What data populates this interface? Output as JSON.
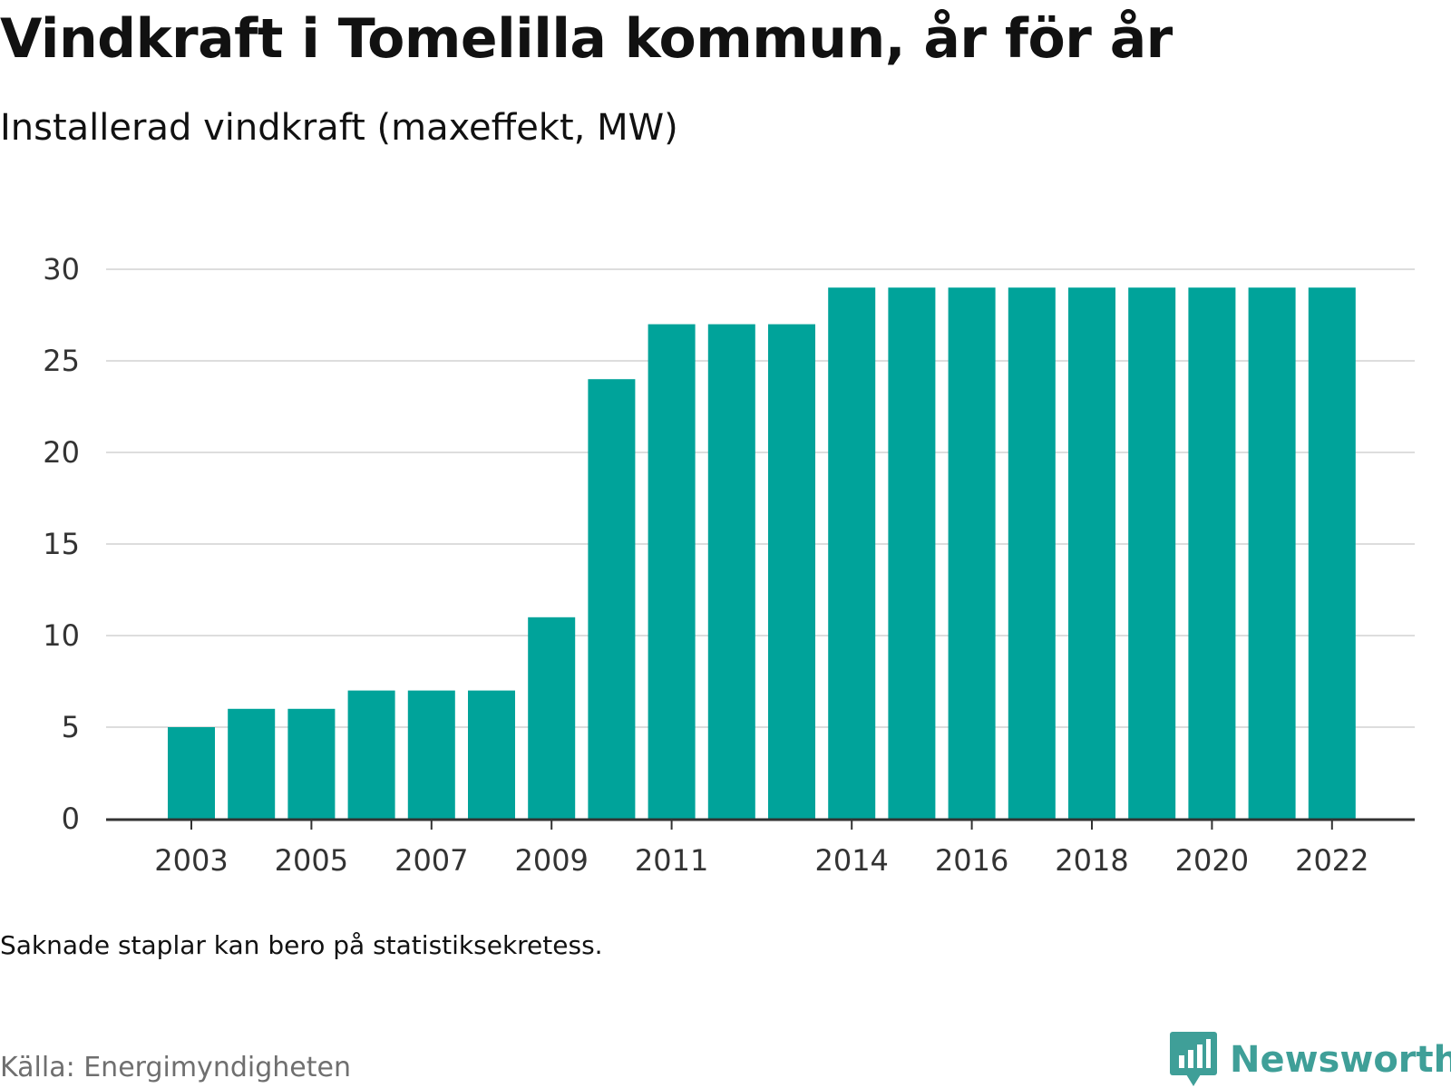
{
  "title": "Vindkraft i Tomelilla kommun, år för år",
  "subtitle": "Installerad vindkraft (maxeffekt, MW)",
  "note": "Saknade staplar kan bero på statistiksekretess.",
  "source": "Källa: Energimyndigheten",
  "brand": "Newsworthy",
  "brand_icon": "bar-chart-speech-bubble-icon",
  "colors": {
    "bar": "#00a39a",
    "grid": "#dddddd",
    "axis": "#333333",
    "brand": "#3f9f98"
  },
  "chart_data": {
    "type": "bar",
    "categories": [
      "2003",
      "2004",
      "2005",
      "2006",
      "2007",
      "2008",
      "2009",
      "2010",
      "2011",
      "2012",
      "2013",
      "2014",
      "2015",
      "2016",
      "2017",
      "2018",
      "2019",
      "2020",
      "2021",
      "2022"
    ],
    "values": [
      5,
      6,
      6,
      7,
      7,
      7,
      11,
      24,
      27,
      27,
      27,
      29,
      29,
      29,
      29,
      29,
      29,
      29,
      29,
      29
    ],
    "x_tick_labels": [
      "2003",
      "2005",
      "2007",
      "2009",
      "2011",
      "2014",
      "2016",
      "2018",
      "2020",
      "2022"
    ],
    "y_ticks": [
      0,
      5,
      10,
      15,
      20,
      25,
      30
    ],
    "ylim": [
      0,
      30
    ],
    "title": "Vindkraft i Tomelilla kommun, år för år",
    "subtitle": "Installerad vindkraft (maxeffekt, MW)",
    "xlabel": "",
    "ylabel": "",
    "grid": true,
    "legend": "none"
  }
}
